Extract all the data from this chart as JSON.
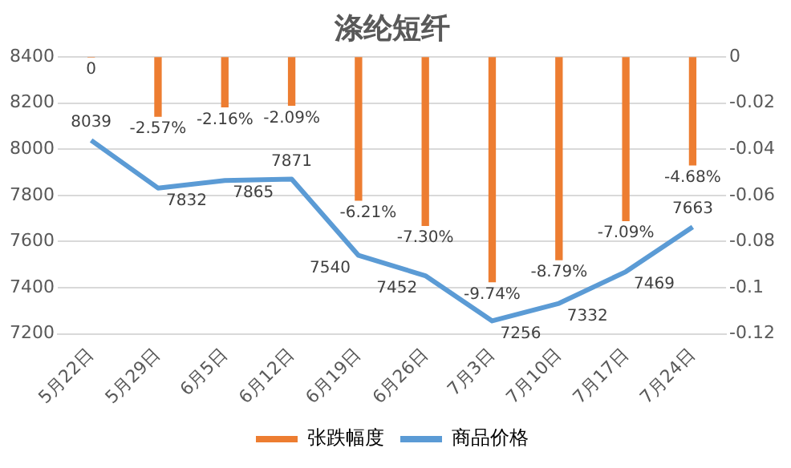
{
  "chart_data": {
    "type": "bar",
    "title": "涤纶短纤",
    "categories": [
      "5月22日",
      "5月29日",
      "6月5日",
      "6月12日",
      "6月19日",
      "6月26日",
      "7月3日",
      "7月10日",
      "7月17日",
      "7月24日"
    ],
    "series": [
      {
        "name": "张跌幅度",
        "type": "bar",
        "axis": "y2",
        "color": "#ed7d31",
        "values": [
          0,
          -0.0257,
          -0.0216,
          -0.0209,
          -0.0621,
          -0.073,
          -0.0974,
          -0.0879,
          -0.0709,
          -0.0468
        ],
        "value_labels": [
          "0",
          "-2.57%",
          "-2.16%",
          "-2.09%",
          "-6.21%",
          "-7.30%",
          "-9.74%",
          "-8.79%",
          "-7.09%",
          "-4.68%"
        ]
      },
      {
        "name": "商品价格",
        "type": "line",
        "color": "#5b9bd5",
        "values": [
          8039,
          7832,
          7865,
          7871,
          7540,
          7452,
          7256,
          7332,
          7469,
          7663
        ],
        "value_labels": [
          "8039",
          "7832",
          "7865",
          "7871",
          "7540",
          "7452",
          "7256",
          "7332",
          "7469",
          "7663"
        ]
      }
    ],
    "ylim": [
      7200,
      8400
    ],
    "yticks": [
      7200,
      7400,
      7600,
      7800,
      8000,
      8200,
      8400
    ],
    "y2lim": [
      -0.12,
      0
    ],
    "y2ticks": [
      -0.12,
      -0.1,
      -0.08,
      -0.06,
      -0.04,
      -0.02,
      0
    ],
    "grid": "y",
    "legend": "bottom",
    "marker": "none",
    "line_style": "solid"
  }
}
